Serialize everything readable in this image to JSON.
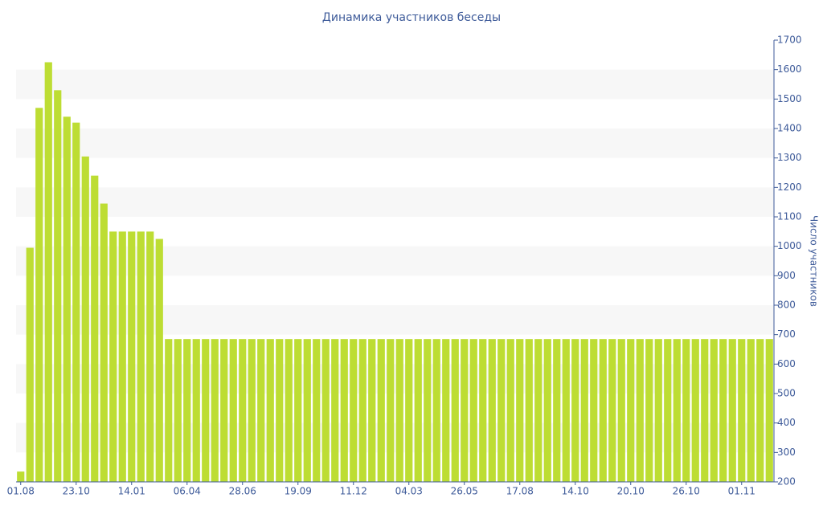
{
  "chart_data": {
    "type": "bar",
    "title": "Динамика участников беседы",
    "y_label": "Число участников",
    "categories": [
      "01.08",
      null,
      null,
      null,
      null,
      null,
      "23.10",
      null,
      null,
      null,
      null,
      null,
      "14.01",
      null,
      null,
      null,
      null,
      null,
      "06.04",
      null,
      null,
      null,
      null,
      null,
      "28.06",
      null,
      null,
      null,
      null,
      null,
      "19.09",
      null,
      null,
      null,
      null,
      null,
      "11.12",
      null,
      null,
      null,
      null,
      null,
      "04.03",
      null,
      null,
      null,
      null,
      null,
      "26.05",
      null,
      null,
      null,
      null,
      null,
      "17.08",
      null,
      null,
      null,
      null,
      null,
      "14.10",
      null,
      null,
      null,
      null,
      null,
      "20.10",
      null,
      null,
      null,
      null,
      null,
      "26.10",
      null,
      null,
      null,
      null,
      null,
      "01.11",
      null,
      null,
      null
    ],
    "values": [
      235,
      995,
      1470,
      1625,
      1530,
      1440,
      1420,
      1305,
      1240,
      1145,
      1050,
      1050,
      1050,
      1050,
      1050,
      1025,
      685,
      685,
      685,
      685,
      685,
      685,
      685,
      685,
      685,
      685,
      685,
      685,
      685,
      685,
      685,
      685,
      685,
      685,
      685,
      685,
      685,
      685,
      685,
      685,
      685,
      685,
      685,
      685,
      685,
      685,
      685,
      685,
      685,
      685,
      685,
      685,
      685,
      685,
      685,
      685,
      685,
      685,
      685,
      685,
      685,
      685,
      685,
      685,
      685,
      685,
      685,
      685,
      685,
      685,
      685,
      685,
      685,
      685,
      685,
      685,
      685,
      685,
      685,
      685,
      685,
      685
    ],
    "color": "#bddd33",
    "ylim": [
      200,
      1700
    ],
    "yticks": [
      200,
      300,
      400,
      500,
      600,
      700,
      800,
      900,
      1000,
      1100,
      1200,
      1300,
      1400,
      1500,
      1600,
      1700
    ],
    "y_axis_side": "right",
    "grid_bands": true
  }
}
